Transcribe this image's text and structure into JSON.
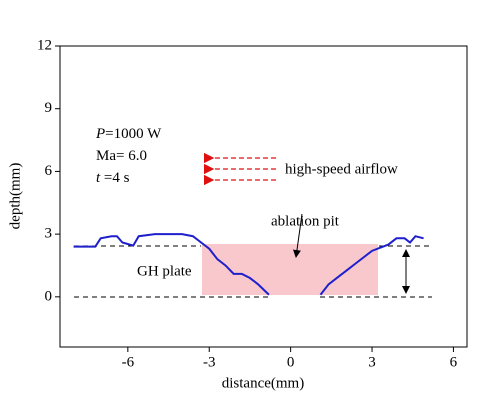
{
  "chart_data": {
    "type": "line",
    "x_label": "distance(mm)",
    "y_label": "depth(mm)",
    "x": [
      -8,
      -7.2,
      -7,
      -6.6,
      -6.4,
      -6.2,
      -5.8,
      -5.6,
      -5,
      -4,
      -3.6,
      -3.3,
      -3,
      -2.7,
      -2.4,
      -2.1,
      -1.8,
      -1.5,
      -1.2,
      -0.8,
      null,
      1.1,
      1.4,
      1.8,
      2.1,
      2.4,
      2.7,
      3.0,
      3.3,
      3.6,
      3.9,
      4.2,
      4.4,
      4.6,
      4.9
    ],
    "series": [
      {
        "color": "#1f1fcc",
        "values": [
          2.4,
          2.4,
          2.8,
          2.9,
          2.9,
          2.6,
          2.45,
          2.9,
          3.0,
          3.0,
          2.9,
          2.6,
          2.3,
          1.8,
          1.5,
          1.1,
          1.1,
          0.9,
          0.6,
          0.1,
          null,
          0.1,
          0.6,
          1.0,
          1.3,
          1.6,
          1.9,
          2.2,
          2.35,
          2.5,
          2.8,
          2.8,
          2.6,
          2.9,
          2.8
        ]
      }
    ],
    "xlim": [
      -8.5,
      6.5
    ],
    "xticks": [
      -6,
      -3,
      0,
      3,
      6
    ],
    "ylim": [
      -2.4,
      12
    ],
    "yticks": [
      0,
      3,
      6,
      9,
      12
    ],
    "params": [
      {
        "symbol": "P",
        "text": "=1000 W"
      },
      {
        "text": "Ma= 6.0"
      },
      {
        "symbol": "t",
        "text": " =4 s"
      }
    ],
    "labels": {
      "airflow": "high-speed airflow",
      "pit": "ablation pit",
      "plate": "GH plate"
    }
  }
}
